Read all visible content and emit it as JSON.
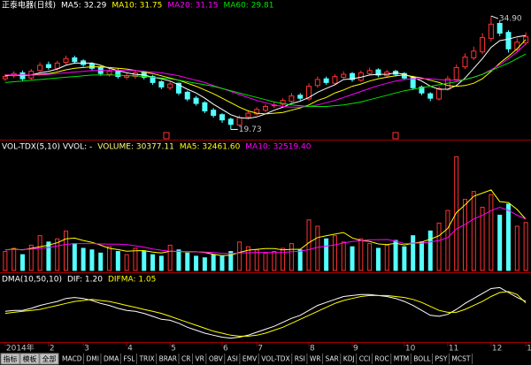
{
  "chart_data": [
    {
      "type": "candlestick",
      "title": "正泰电器(日线)",
      "open": [
        26.5,
        26.9,
        27.3,
        26.6,
        27.6,
        28.4,
        27.9,
        28.7,
        29.3,
        28.9,
        28.5,
        28.0,
        27.1,
        27.6,
        26.7,
        26.8,
        27.4,
        26.8,
        26.1,
        25.3,
        25.9,
        24.7,
        23.9,
        23.3,
        22.3,
        21.7,
        21.1,
        20.3,
        21.4,
        21.8,
        22.3,
        22.9,
        23.1,
        23.5,
        24.3,
        23.8,
        25.6,
        26.5,
        25.9,
        26.7,
        27.2,
        26.3,
        27.2,
        27.7,
        26.9,
        27.5,
        27.2,
        26.7,
        25.4,
        24.5,
        23.8,
        25.1,
        26.4,
        28.1,
        29.3,
        30.1,
        31.9,
        33.9,
        32.7,
        30.4,
        31.3
      ],
      "high": [
        27.1,
        27.5,
        27.6,
        27.8,
        28.7,
        28.8,
        28.9,
        29.6,
        29.6,
        29.1,
        28.7,
        28.2,
        27.8,
        27.9,
        27.2,
        27.6,
        27.6,
        27.0,
        26.3,
        26.1,
        26.0,
        24.9,
        24.2,
        23.5,
        22.6,
        21.9,
        21.3,
        21.6,
        22.2,
        22.7,
        23.1,
        23.4,
        23.9,
        24.6,
        24.6,
        25.9,
        26.8,
        26.8,
        27.1,
        27.5,
        27.4,
        27.6,
        28.0,
        27.9,
        27.7,
        27.7,
        27.4,
        26.9,
        25.6,
        24.7,
        25.5,
        26.9,
        28.4,
        29.9,
        30.8,
        32.6,
        34.9,
        34.3,
        33.0,
        31.9,
        32.7
      ],
      "low": [
        26.2,
        26.6,
        26.2,
        26.4,
        27.4,
        27.7,
        27.6,
        28.4,
        28.5,
        28.1,
        27.6,
        26.9,
        26.8,
        26.5,
        26.4,
        26.5,
        26.4,
        25.7,
        25.1,
        25.0,
        24.3,
        23.5,
        22.9,
        21.9,
        21.3,
        20.6,
        19.73,
        20.1,
        21.1,
        21.6,
        22.0,
        22.6,
        22.8,
        23.3,
        23.6,
        23.6,
        25.3,
        25.7,
        25.7,
        26.5,
        26.1,
        26.1,
        27.0,
        26.7,
        26.7,
        26.8,
        26.3,
        25.0,
        24.3,
        23.5,
        23.6,
        24.9,
        26.2,
        27.8,
        29.0,
        29.8,
        31.5,
        32.2,
        30.0,
        30.1,
        31.0
      ],
      "close": [
        26.8,
        27.2,
        26.5,
        27.5,
        28.3,
        28.0,
        28.6,
        29.2,
        28.8,
        28.4,
        27.9,
        27.2,
        27.5,
        26.8,
        26.9,
        27.3,
        26.7,
        26.0,
        25.4,
        25.8,
        24.6,
        23.8,
        23.2,
        22.2,
        21.6,
        21.0,
        20.4,
        21.3,
        21.9,
        22.4,
        22.8,
        23.0,
        23.6,
        24.2,
        23.9,
        25.5,
        26.4,
        26.0,
        26.8,
        27.1,
        26.4,
        27.3,
        27.6,
        27.0,
        27.4,
        27.1,
        26.6,
        25.3,
        24.6,
        23.9,
        25.2,
        26.5,
        28.0,
        29.4,
        30.2,
        32.0,
        33.8,
        32.6,
        30.5,
        31.4,
        32.1
      ],
      "up_color": "#ff3232",
      "down_color": "#54ffff",
      "series": [
        {
          "name": "MA5: 32.29",
          "color": "#ffffff",
          "values": [
            26.9,
            27.0,
            26.9,
            27.0,
            27.3,
            27.5,
            27.8,
            28.3,
            28.6,
            28.6,
            28.6,
            28.3,
            27.9,
            27.6,
            27.3,
            27.1,
            27.0,
            26.7,
            26.5,
            26.2,
            25.7,
            25.1,
            24.6,
            23.9,
            23.1,
            22.4,
            21.7,
            21.3,
            21.2,
            21.4,
            21.8,
            22.3,
            22.7,
            23.2,
            23.5,
            24.0,
            24.7,
            25.2,
            25.7,
            26.4,
            26.5,
            26.7,
            27.0,
            27.1,
            27.1,
            27.3,
            27.1,
            26.7,
            26.2,
            25.5,
            25.1,
            25.1,
            25.6,
            26.6,
            27.9,
            29.2,
            30.7,
            31.6,
            31.8,
            32.1,
            32.29
          ]
        },
        {
          "name": "MA10: 31.75",
          "color": "#ffff00",
          "values": [
            27.0,
            27.0,
            27.0,
            27.0,
            27.1,
            27.2,
            27.4,
            27.7,
            27.9,
            28.0,
            28.1,
            28.1,
            28.0,
            27.9,
            27.8,
            27.6,
            27.4,
            27.2,
            26.9,
            26.6,
            26.3,
            25.9,
            25.5,
            25.0,
            24.5,
            23.9,
            23.3,
            22.7,
            22.2,
            21.9,
            21.8,
            21.9,
            22.0,
            22.3,
            22.6,
            23.0,
            23.6,
            24.0,
            24.6,
            25.0,
            25.5,
            25.8,
            26.2,
            26.5,
            26.7,
            26.9,
            27.0,
            26.8,
            26.6,
            26.3,
            26.0,
            25.6,
            25.5,
            25.6,
            25.9,
            26.5,
            27.5,
            28.6,
            29.5,
            30.5,
            31.75
          ]
        },
        {
          "name": "MA20: 31.15",
          "color": "#ff00ff",
          "values": [
            27.0,
            27.0,
            27.0,
            27.0,
            27.0,
            27.1,
            27.2,
            27.3,
            27.4,
            27.5,
            27.6,
            27.6,
            27.6,
            27.6,
            27.6,
            27.6,
            27.5,
            27.4,
            27.3,
            27.1,
            26.9,
            26.6,
            26.3,
            26.0,
            25.6,
            25.2,
            24.8,
            24.4,
            24.0,
            23.6,
            23.3,
            23.0,
            22.8,
            22.7,
            22.7,
            22.8,
            23.0,
            23.3,
            23.6,
            24.0,
            24.4,
            24.8,
            25.2,
            25.6,
            25.9,
            26.2,
            26.4,
            26.5,
            26.5,
            26.5,
            26.4,
            26.3,
            26.3,
            26.4,
            26.7,
            27.1,
            27.7,
            28.4,
            29.2,
            30.1,
            31.15
          ]
        },
        {
          "name": "MA60: 29.81",
          "color": "#00e600",
          "values": [
            26.0,
            26.1,
            26.2,
            26.3,
            26.4,
            26.5,
            26.6,
            26.7,
            26.8,
            26.9,
            27.0,
            27.0,
            27.0,
            27.0,
            26.9,
            26.9,
            26.8,
            26.7,
            26.6,
            26.5,
            26.3,
            26.1,
            25.9,
            25.7,
            25.5,
            25.2,
            24.9,
            24.6,
            24.3,
            24.0,
            23.7,
            23.4,
            23.2,
            23.0,
            22.9,
            22.8,
            22.8,
            22.8,
            22.9,
            23.0,
            23.2,
            23.4,
            23.7,
            24.0,
            24.3,
            24.6,
            24.9,
            25.1,
            25.3,
            25.5,
            25.7,
            25.9,
            26.1,
            26.4,
            26.7,
            27.1,
            27.6,
            28.1,
            28.6,
            29.2,
            29.81
          ]
        }
      ],
      "ylim": [
        18.6,
        35.85
      ],
      "annotations": [
        {
          "label": "34.90",
          "value": 34.9
        },
        {
          "label": "19.73",
          "value": 19.73
        }
      ]
    },
    {
      "type": "volume",
      "title": "VOL-TDX(5,10) VVOL: -",
      "bars": {
        "name": "VOLUME: 30377.11",
        "color": "#ffff80",
        "values": [
          12000,
          14000,
          10000,
          16000,
          22000,
          18000,
          20000,
          25000,
          17000,
          14000,
          13000,
          11000,
          15000,
          12000,
          10000,
          14000,
          12000,
          10000,
          9000,
          16000,
          13000,
          11000,
          9000,
          8000,
          10000,
          9000,
          12000,
          18000,
          15000,
          13000,
          11000,
          12000,
          14000,
          17000,
          13000,
          32000,
          28000,
          20000,
          22000,
          18000,
          15000,
          20000,
          17000,
          14000,
          16000,
          19000,
          15000,
          22000,
          18000,
          25000,
          30000,
          38000,
          72000,
          45000,
          50000,
          40000,
          48000,
          35000,
          42000,
          28000,
          30377.11
        ]
      },
      "series": [
        {
          "name": "MA5: 32461.60",
          "color": "#ffff00",
          "values": [
            13000,
            13500,
            13000,
            14000,
            15000,
            16000,
            17500,
            20000,
            20500,
            19000,
            17800,
            16000,
            14000,
            13200,
            12200,
            12400,
            12600,
            11600,
            11000,
            12200,
            12000,
            11800,
            11800,
            11400,
            10200,
            9400,
            9600,
            11400,
            12800,
            13400,
            13800,
            13800,
            13000,
            13400,
            13400,
            17600,
            20800,
            22000,
            23000,
            24000,
            20600,
            19000,
            18400,
            16800,
            16400,
            17200,
            16200,
            17200,
            18000,
            19800,
            22000,
            26600,
            36600,
            41600,
            47000,
            49000,
            51000,
            43600,
            43000,
            38600,
            32461.6
          ]
        },
        {
          "name": "MA10: 32519.40",
          "color": "#ff00ff",
          "values": [
            13000,
            13200,
            13200,
            13500,
            14000,
            14500,
            15500,
            16500,
            17000,
            17000,
            17000,
            16800,
            16700,
            16600,
            16400,
            15600,
            14800,
            13600,
            12800,
            12200,
            12100,
            12000,
            11800,
            11600,
            11400,
            10800,
            10700,
            11000,
            11200,
            11400,
            11400,
            11300,
            11400,
            11800,
            12200,
            13200,
            14600,
            15400,
            16200,
            17400,
            18300,
            18800,
            19400,
            19400,
            19600,
            18500,
            17000,
            17300,
            17300,
            18000,
            19000,
            20800,
            26200,
            29200,
            32600,
            34900,
            37900,
            40000,
            38000,
            35000,
            32519.4
          ]
        }
      ],
      "ylim": [
        0,
        75000
      ]
    },
    {
      "type": "line",
      "title": "DMA(10,50,10)",
      "series": [
        {
          "name": "DIF: 1.20",
          "color": "#ffffff",
          "values": [
            0.2,
            0.3,
            0.3,
            0.5,
            0.8,
            1.0,
            1.2,
            1.5,
            1.6,
            1.5,
            1.3,
            1.0,
            0.8,
            0.5,
            0.3,
            0.2,
            0.0,
            -0.3,
            -0.6,
            -0.7,
            -1.0,
            -1.4,
            -1.7,
            -2.0,
            -2.2,
            -2.4,
            -2.5,
            -2.4,
            -2.2,
            -1.9,
            -1.6,
            -1.3,
            -0.9,
            -0.5,
            -0.2,
            0.3,
            0.8,
            1.1,
            1.4,
            1.7,
            1.8,
            1.9,
            1.9,
            1.8,
            1.7,
            1.5,
            1.2,
            0.8,
            0.3,
            -0.2,
            -0.3,
            -0.1,
            0.4,
            1.0,
            1.5,
            2.0,
            2.5,
            2.6,
            2.1,
            1.6,
            1.2
          ]
        },
        {
          "name": "DIFMA: 1.05",
          "color": "#ffff00",
          "values": [
            0.0,
            0.1,
            0.2,
            0.3,
            0.4,
            0.6,
            0.8,
            1.0,
            1.2,
            1.3,
            1.4,
            1.3,
            1.2,
            1.0,
            0.8,
            0.6,
            0.4,
            0.2,
            0.0,
            -0.3,
            -0.6,
            -0.9,
            -1.2,
            -1.5,
            -1.8,
            -2.0,
            -2.2,
            -2.3,
            -2.3,
            -2.2,
            -2.0,
            -1.7,
            -1.4,
            -1.0,
            -0.6,
            -0.2,
            0.2,
            0.6,
            1.0,
            1.3,
            1.5,
            1.7,
            1.8,
            1.8,
            1.8,
            1.7,
            1.6,
            1.4,
            1.1,
            0.7,
            0.3,
            0.1,
            0.1,
            0.4,
            0.8,
            1.2,
            1.7,
            2.1,
            2.2,
            1.9,
            1.05
          ]
        }
      ],
      "ylim": [
        -2.8,
        2.9
      ]
    }
  ],
  "x_axis": {
    "xlim": [
      -0.6,
      60.6
    ],
    "xticks": [
      {
        "value": 0,
        "label": "2014年"
      },
      {
        "value": 5,
        "label": "2"
      },
      {
        "value": 9,
        "label": "3"
      },
      {
        "value": 14,
        "label": "4"
      },
      {
        "value": 19,
        "label": "5"
      },
      {
        "value": 25,
        "label": "6"
      },
      {
        "value": 29,
        "label": "7"
      },
      {
        "value": 35,
        "label": "8"
      },
      {
        "value": 40,
        "label": "9"
      },
      {
        "value": 46,
        "label": "10"
      },
      {
        "value": 51,
        "label": "11"
      },
      {
        "value": 56,
        "label": "12"
      },
      {
        "value": 60,
        "label": "1"
      }
    ]
  },
  "toolbar": {
    "buttons": [
      "指标",
      "模板",
      "全部"
    ],
    "tabs": [
      "MACD",
      "DMI",
      "DMA",
      "FSL",
      "TRIX",
      "BRAR",
      "CR",
      "VR",
      "OBV",
      "ASI",
      "EMV",
      "VOL-TDX",
      "RSI",
      "WR",
      "SAR",
      "KDJ",
      "CCI",
      "ROC",
      "MTM",
      "BOLL",
      "PSY",
      "MCST"
    ],
    "active_tab": 2
  }
}
